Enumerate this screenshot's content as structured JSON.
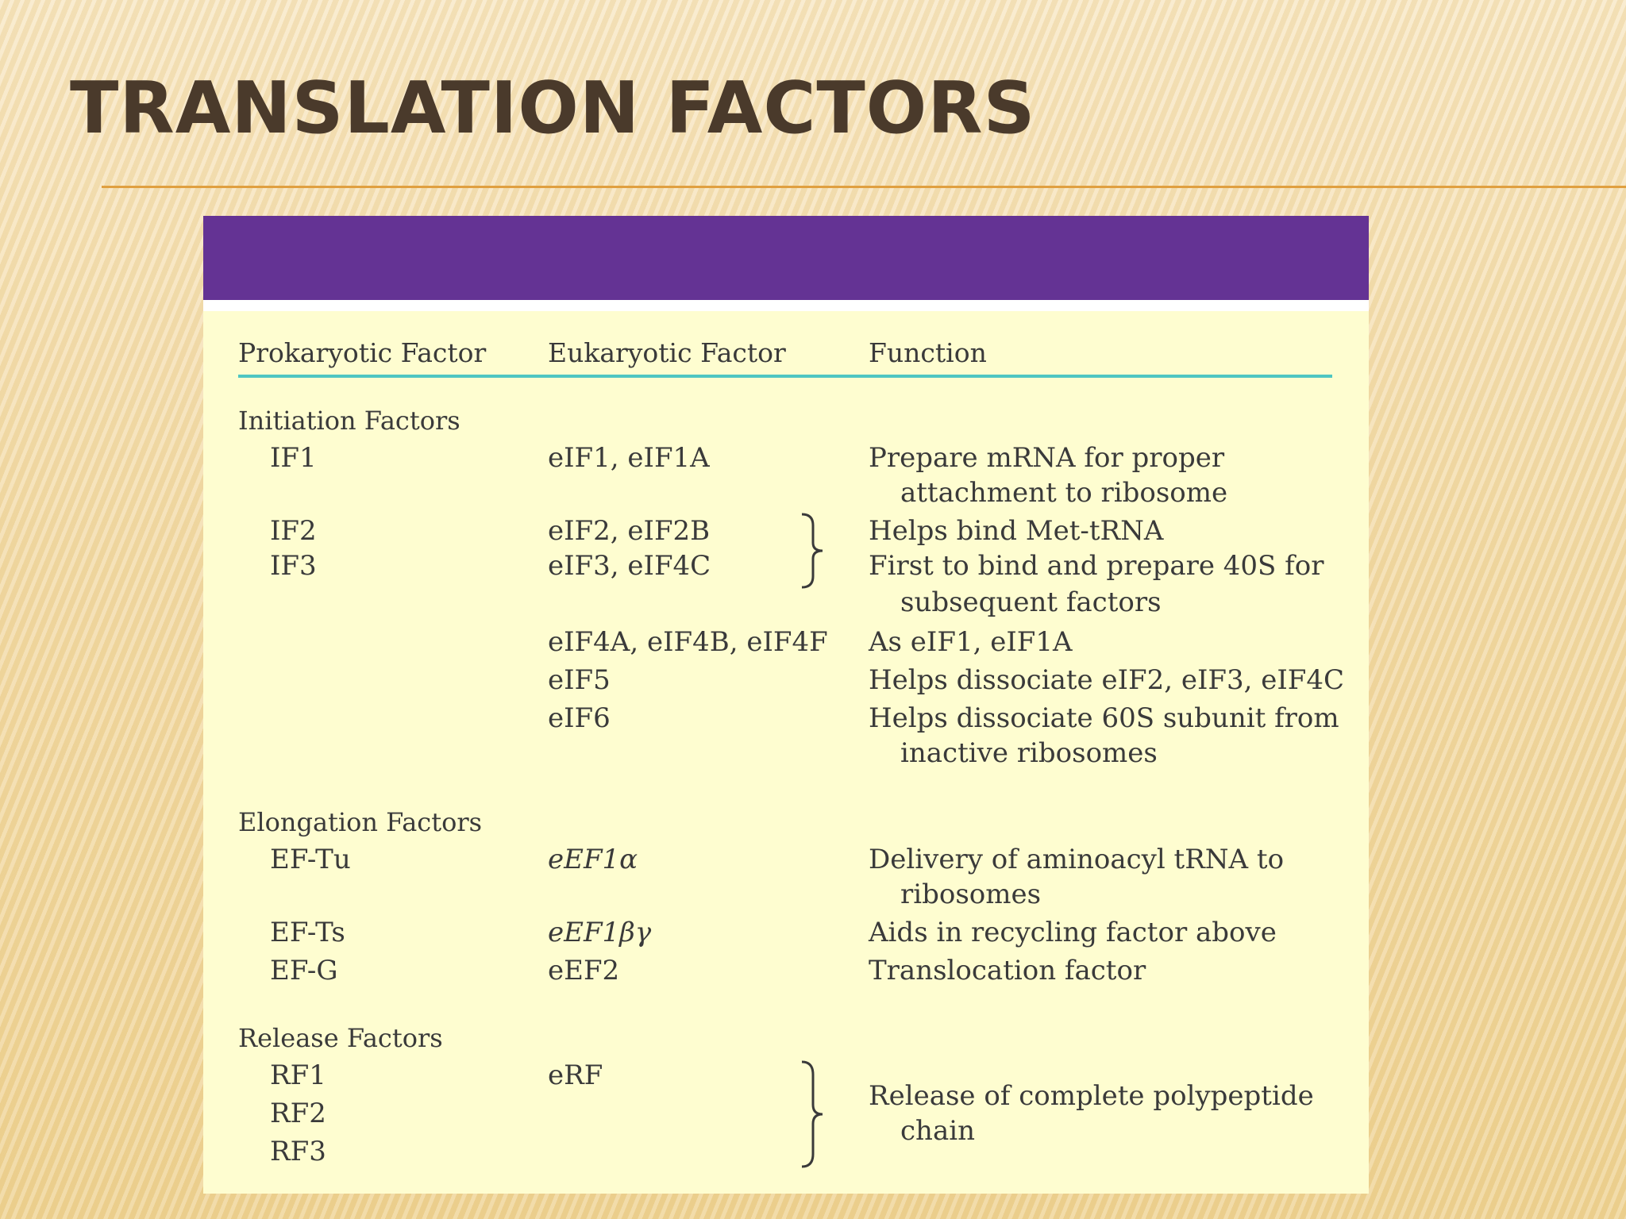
{
  "title": "TRANSLATION FACTORS",
  "table": {
    "headers": [
      "Prokaryotic Factor",
      "Eukaryotic Factor",
      "Function"
    ],
    "sections": [
      {
        "name": "Initiation Factors",
        "rows": [
          {
            "prokaryotic": "IF1",
            "eukaryotic": "eIF1, eIF1A",
            "function": [
              "Prepare mRNA for proper",
              "attachment to ribosome"
            ]
          },
          {
            "prokaryotic": "IF2",
            "eukaryotic": "eIF2, eIF2B",
            "function": [
              "Helps bind Met-tRNA"
            ]
          },
          {
            "prokaryotic": "IF3",
            "eukaryotic": "eIF3, eIF4C",
            "function": [
              "First to bind and prepare 40S for",
              "subsequent factors"
            ]
          },
          {
            "prokaryotic": "",
            "eukaryotic": "eIF4A, eIF4B, eIF4F",
            "function": [
              "As eIF1, eIF1A"
            ]
          },
          {
            "prokaryotic": "",
            "eukaryotic": "eIF5",
            "function": [
              "Helps dissociate eIF2, eIF3, eIF4C"
            ]
          },
          {
            "prokaryotic": "",
            "eukaryotic": "eIF6",
            "function": [
              "Helps dissociate 60S subunit from",
              "inactive ribosomes"
            ]
          }
        ]
      },
      {
        "name": "Elongation Factors",
        "rows": [
          {
            "prokaryotic": "EF-Tu",
            "eukaryotic": "eEF1α",
            "function": [
              "Delivery of aminoacyl tRNA to",
              "ribosomes"
            ]
          },
          {
            "prokaryotic": "EF-Ts",
            "eukaryotic": "eEF1βγ",
            "function": [
              "Aids in recycling factor above"
            ]
          },
          {
            "prokaryotic": "EF-G",
            "eukaryotic": "eEF2",
            "function": [
              "Translocation factor"
            ]
          }
        ]
      },
      {
        "name": "Release Factors",
        "rows": [
          {
            "prokaryotic": "RF1",
            "eukaryotic": "eRF",
            "function": [
              "Release of complete polypeptide",
              "chain"
            ]
          },
          {
            "prokaryotic": "RF2",
            "eukaryotic": "",
            "function": []
          },
          {
            "prokaryotic": "RF3",
            "eukaryotic": "",
            "function": []
          }
        ]
      }
    ]
  },
  "colors": {
    "band": "#643394",
    "panel": "#fefdd0",
    "teal_rule": "#4ec6c2",
    "title": "#4a3a2b",
    "rule": "#e0a040"
  }
}
